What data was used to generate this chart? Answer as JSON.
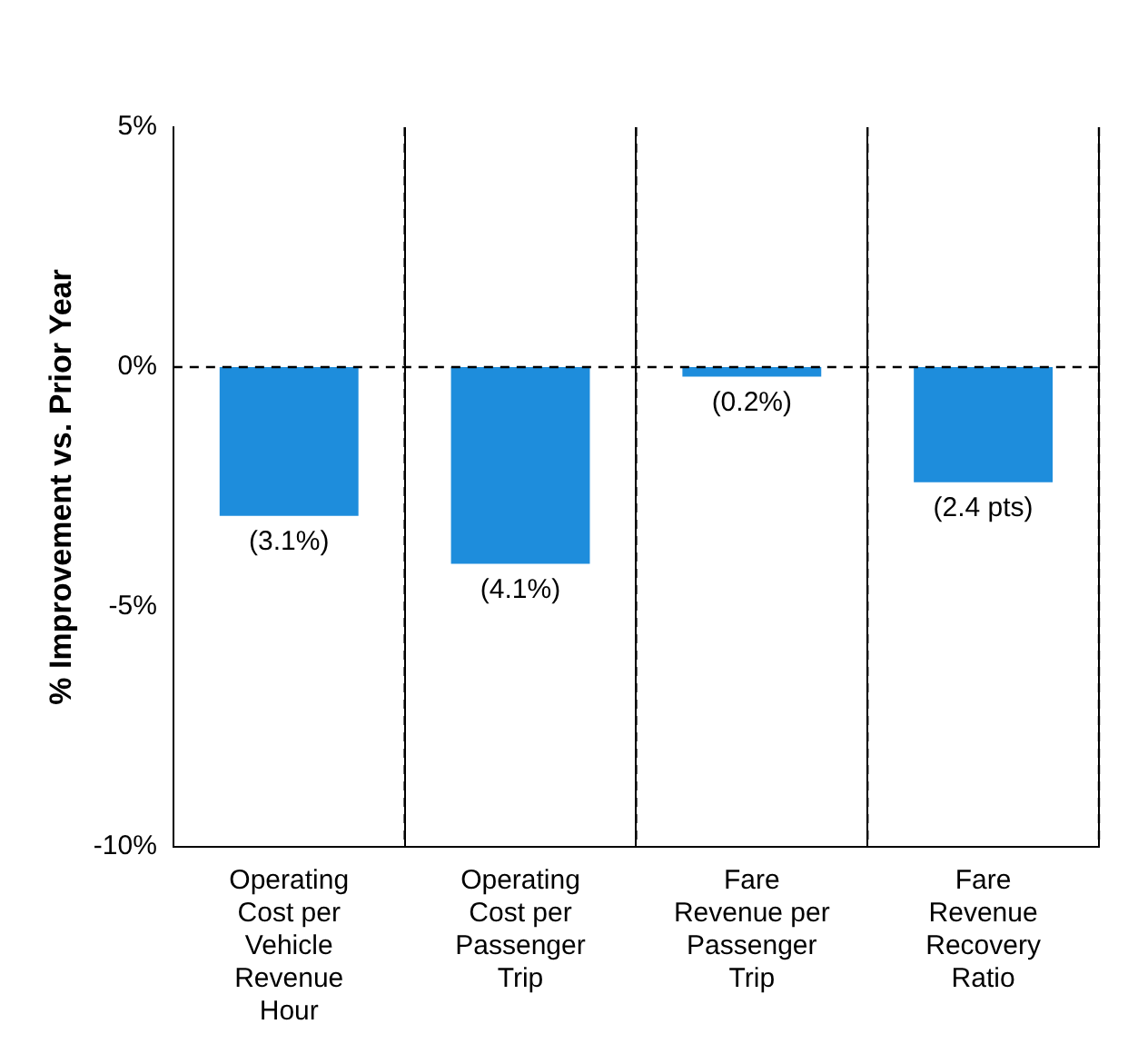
{
  "chart_data": {
    "type": "bar",
    "ylabel": "% Improvement vs. Prior Year",
    "categories": [
      "Operating Cost per Vehicle Revenue Hour",
      "Operating Cost per Passenger Trip",
      "Fare Revenue per Passenger Trip",
      "Fare Revenue Recovery Ratio"
    ],
    "values": [
      -3.1,
      -4.1,
      -0.2,
      -2.4
    ],
    "value_labels": [
      "(3.1%)",
      "(4.1%)",
      "(0.2%)",
      "(2.4 pts)"
    ],
    "color": "#1e8ddc",
    "ylim": [
      -10,
      5
    ],
    "yticks": [
      {
        "value": -10,
        "label": "-10%"
      },
      {
        "value": -5,
        "label": "-5%"
      },
      {
        "value": 0,
        "label": "0%"
      },
      {
        "value": 5,
        "label": "5%"
      }
    ],
    "grid": "x",
    "ref_lines": [
      {
        "axis": "y",
        "value": 0,
        "line_style": "dashed"
      }
    ],
    "legend": false
  }
}
